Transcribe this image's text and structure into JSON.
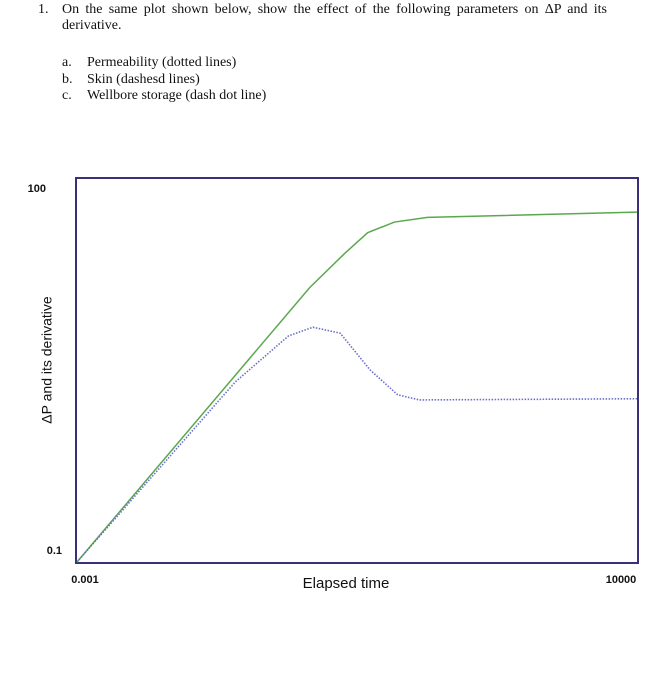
{
  "question": {
    "number": "1.",
    "text": "On the same plot shown below, show the effect of the following parameters on ΔP and its derivative.",
    "items": [
      {
        "letter": "a.",
        "text": "Permeability (dotted lines)"
      },
      {
        "letter": "b.",
        "text": "Skin (dashesd lines)"
      },
      {
        "letter": "c.",
        "text": "Wellbore storage (dash dot line)"
      }
    ]
  },
  "chart_data": {
    "type": "line",
    "xlabel": "Elapsed time",
    "ylabel": "ΔP and its derivative",
    "xscale": "log",
    "yscale": "log",
    "xlim": [
      0.001,
      10000
    ],
    "ylim": [
      0.1,
      100
    ],
    "xticks": [
      0.001,
      10000
    ],
    "yticks": [
      0.1,
      100
    ],
    "series": [
      {
        "color": "#5aa84e",
        "style": "solid",
        "x": [
          0.001,
          0.81,
          2.2,
          4.3,
          9.3,
          24,
          10000
        ],
        "values": [
          0.1,
          14.1,
          26,
          38,
          46,
          50,
          55
        ]
      },
      {
        "color": "#6b6fc8",
        "style": "dotted",
        "x": [
          0.001,
          0.095,
          0.44,
          0.89,
          1.95,
          4.6,
          10.2,
          19,
          10000
        ],
        "values": [
          0.1,
          2.57,
          5.9,
          6.9,
          6.2,
          3.2,
          2.04,
          1.86,
          1.9
        ]
      }
    ]
  }
}
